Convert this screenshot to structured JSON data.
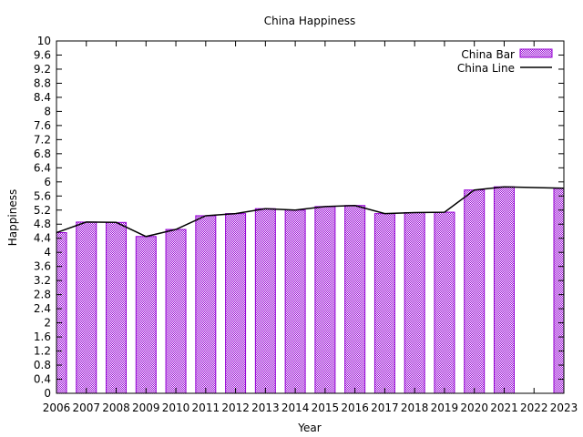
{
  "chart_data": {
    "type": "bar",
    "title": "China Happiness",
    "xlabel": "Year",
    "ylabel": "Happiness",
    "xlim": [
      2006,
      2023
    ],
    "ylim": [
      0,
      10
    ],
    "yticks": [
      "0",
      "0.4",
      "0.8",
      "1.2",
      "1.6",
      "2",
      "2.4",
      "2.8",
      "3.2",
      "3.6",
      "4",
      "4.4",
      "4.8",
      "5.2",
      "5.6",
      "6",
      "6.4",
      "6.8",
      "7.2",
      "7.6",
      "8",
      "8.4",
      "8.8",
      "9.2",
      "9.6",
      "10"
    ],
    "xticks": [
      "2006",
      "2007",
      "2008",
      "2009",
      "2010",
      "2011",
      "2012",
      "2013",
      "2014",
      "2015",
      "2016",
      "2017",
      "2018",
      "2019",
      "2020",
      "2021",
      "2022",
      "2023"
    ],
    "grid": false,
    "legend_position": "top-right",
    "series": [
      {
        "name": "China Bar",
        "kind": "bar",
        "color": "#9400d3",
        "pattern": "checkered",
        "x": [
          2006,
          2007,
          2008,
          2009,
          2010,
          2011,
          2012,
          2013,
          2014,
          2015,
          2016,
          2017,
          2018,
          2019,
          2020,
          2021,
          2023
        ],
        "y": [
          4.56,
          4.86,
          4.85,
          4.45,
          4.65,
          5.04,
          5.1,
          5.24,
          5.2,
          5.3,
          5.33,
          5.1,
          5.13,
          5.14,
          5.77,
          5.86,
          5.82
        ]
      },
      {
        "name": "China Line",
        "kind": "line",
        "color": "#000000",
        "x": [
          2006,
          2007,
          2008,
          2009,
          2010,
          2011,
          2012,
          2013,
          2014,
          2015,
          2016,
          2017,
          2018,
          2019,
          2020,
          2021,
          2023
        ],
        "y": [
          4.56,
          4.86,
          4.85,
          4.45,
          4.65,
          5.04,
          5.1,
          5.24,
          5.2,
          5.3,
          5.33,
          5.1,
          5.13,
          5.14,
          5.77,
          5.86,
          5.82
        ]
      }
    ]
  }
}
